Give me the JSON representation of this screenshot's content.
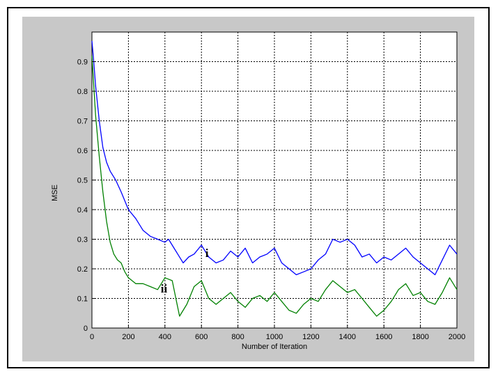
{
  "chart_data": {
    "type": "line",
    "title": "",
    "xlabel": "Number of Iteration",
    "ylabel": "MSE",
    "xlim": [
      0,
      2000
    ],
    "ylim": [
      0,
      1
    ],
    "xticks": [
      0,
      200,
      400,
      600,
      800,
      1000,
      1200,
      1400,
      1600,
      1800,
      2000
    ],
    "xtick_labels": [
      "0",
      "200",
      "400",
      "600",
      "800",
      "1000",
      "1200",
      "1400",
      "1600",
      "1800",
      "2000"
    ],
    "yticks": [
      0,
      0.1,
      0.2,
      0.3,
      0.4,
      0.5,
      0.6,
      0.7,
      0.8,
      0.9
    ],
    "ytick_labels": [
      "0",
      "0.1",
      "0.2",
      "0.3",
      "0.4",
      "0.5",
      "0.6",
      "0.7",
      "0.8",
      "0.9"
    ],
    "grid": true,
    "series": [
      {
        "color": "#0000ff",
        "x": [
          0,
          10,
          20,
          40,
          60,
          80,
          100,
          130,
          160,
          200,
          240,
          280,
          320,
          360,
          400,
          420,
          460,
          500,
          530,
          560,
          600,
          640,
          680,
          720,
          760,
          800,
          840,
          880,
          920,
          960,
          1000,
          1040,
          1080,
          1120,
          1160,
          1200,
          1240,
          1280,
          1320,
          1360,
          1400,
          1440,
          1480,
          1520,
          1560,
          1600,
          1640,
          1680,
          1720,
          1760,
          1800,
          1840,
          1880,
          1920,
          1960,
          2000
        ],
        "y": [
          0.97,
          0.9,
          0.82,
          0.7,
          0.61,
          0.56,
          0.53,
          0.5,
          0.46,
          0.4,
          0.37,
          0.33,
          0.31,
          0.3,
          0.29,
          0.3,
          0.26,
          0.22,
          0.24,
          0.25,
          0.28,
          0.24,
          0.22,
          0.23,
          0.26,
          0.24,
          0.27,
          0.22,
          0.24,
          0.25,
          0.27,
          0.22,
          0.2,
          0.18,
          0.19,
          0.2,
          0.23,
          0.25,
          0.3,
          0.29,
          0.3,
          0.28,
          0.24,
          0.25,
          0.22,
          0.24,
          0.23,
          0.25,
          0.27,
          0.24,
          0.22,
          0.2,
          0.18,
          0.23,
          0.28,
          0.25
        ]
      },
      {
        "color": "#008000",
        "x": [
          0,
          10,
          20,
          40,
          60,
          80,
          100,
          120,
          140,
          160,
          180,
          200,
          240,
          280,
          320,
          360,
          400,
          440,
          460,
          480,
          520,
          560,
          600,
          640,
          680,
          720,
          760,
          800,
          840,
          880,
          920,
          960,
          1000,
          1040,
          1080,
          1120,
          1160,
          1200,
          1240,
          1280,
          1320,
          1360,
          1400,
          1440,
          1480,
          1520,
          1560,
          1600,
          1640,
          1680,
          1720,
          1760,
          1800,
          1840,
          1880,
          1920,
          1960,
          2000
        ],
        "y": [
          0.92,
          0.82,
          0.72,
          0.58,
          0.46,
          0.36,
          0.29,
          0.25,
          0.23,
          0.22,
          0.19,
          0.17,
          0.15,
          0.15,
          0.14,
          0.13,
          0.17,
          0.16,
          0.1,
          0.04,
          0.08,
          0.14,
          0.16,
          0.1,
          0.08,
          0.1,
          0.12,
          0.09,
          0.07,
          0.1,
          0.11,
          0.09,
          0.12,
          0.09,
          0.06,
          0.05,
          0.08,
          0.1,
          0.09,
          0.13,
          0.16,
          0.14,
          0.12,
          0.13,
          0.1,
          0.07,
          0.04,
          0.06,
          0.09,
          0.13,
          0.15,
          0.11,
          0.12,
          0.09,
          0.08,
          0.12,
          0.17,
          0.13
        ]
      }
    ],
    "annotations": [
      {
        "text": "i",
        "x": 630,
        "y": 0.24
      },
      {
        "text": "ii",
        "x": 395,
        "y": 0.12
      }
    ]
  }
}
